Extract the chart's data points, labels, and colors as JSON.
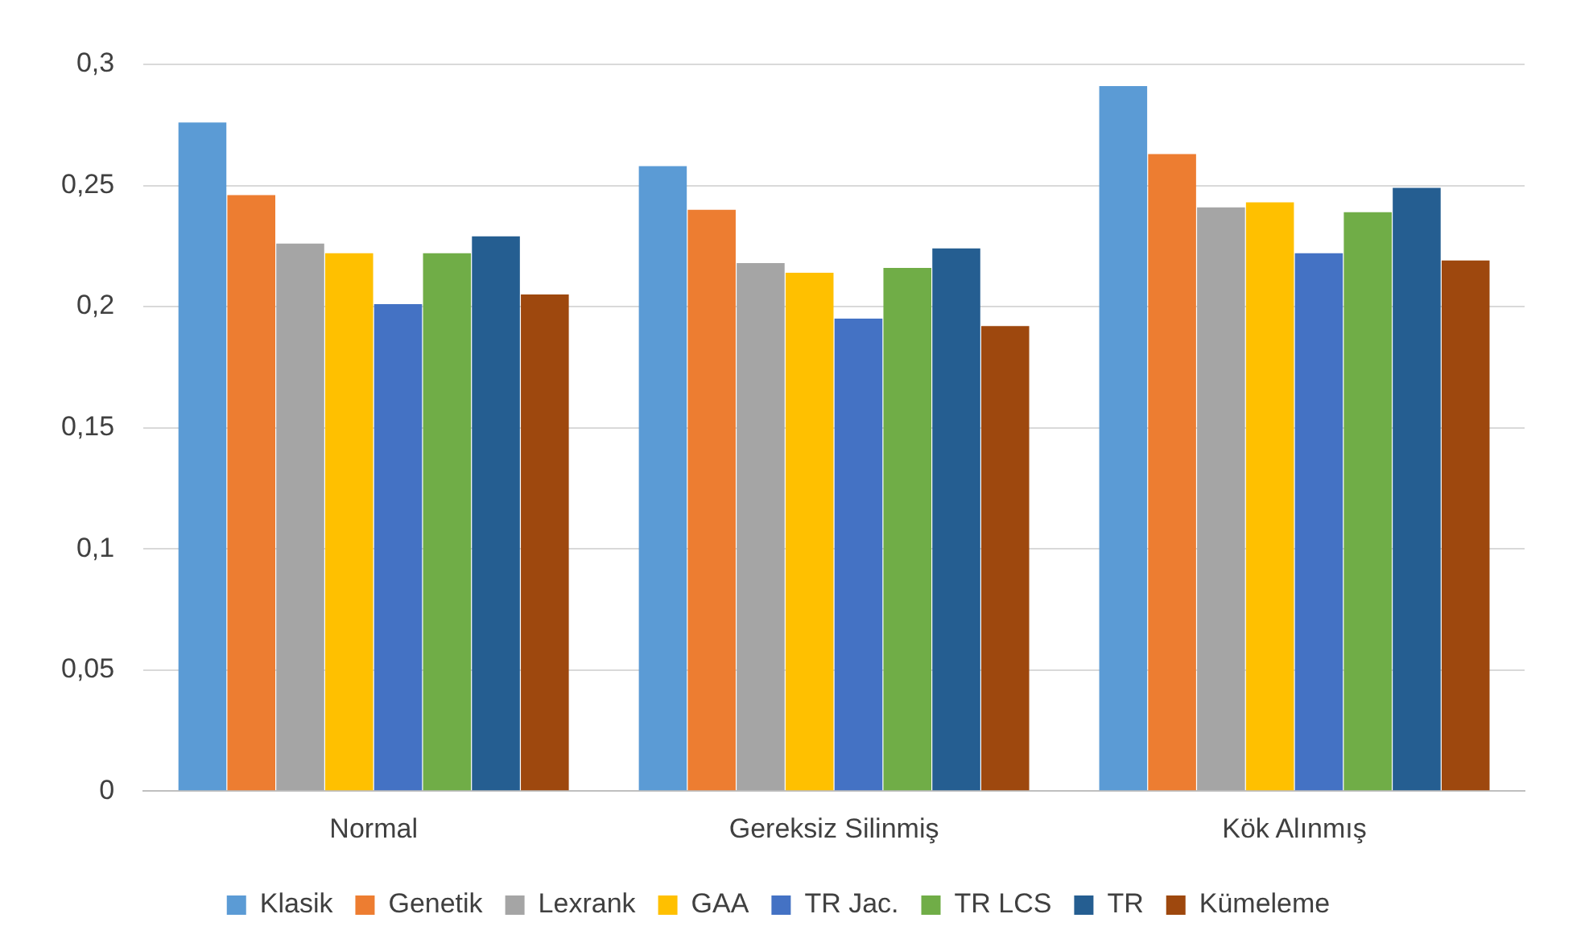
{
  "chart_data": {
    "type": "bar",
    "categories": [
      "Normal",
      "Gereksiz Silinmiş",
      "Kök Alınmış"
    ],
    "series": [
      {
        "name": "Klasik",
        "color": "#5b9bd5",
        "values": [
          0.276,
          0.258,
          0.291
        ]
      },
      {
        "name": "Genetik",
        "color": "#ed7d31",
        "values": [
          0.246,
          0.24,
          0.263
        ]
      },
      {
        "name": "Lexrank",
        "color": "#a5a5a5",
        "values": [
          0.226,
          0.218,
          0.241
        ]
      },
      {
        "name": "GAA",
        "color": "#ffc000",
        "values": [
          0.222,
          0.214,
          0.243
        ]
      },
      {
        "name": "TR Jac.",
        "color": "#4472c4",
        "values": [
          0.201,
          0.195,
          0.222
        ]
      },
      {
        "name": "TR LCS",
        "color": "#70ad47",
        "values": [
          0.222,
          0.216,
          0.239
        ]
      },
      {
        "name": "TR",
        "color": "#255e91",
        "values": [
          0.229,
          0.224,
          0.249
        ]
      },
      {
        "name": "Kümeleme",
        "color": "#9e480e",
        "values": [
          0.205,
          0.192,
          0.219
        ]
      }
    ],
    "ylim": [
      0,
      0.3
    ],
    "yticks": [
      {
        "value": 0,
        "label": "0"
      },
      {
        "value": 0.05,
        "label": "0,05"
      },
      {
        "value": 0.1,
        "label": "0,1"
      },
      {
        "value": 0.15,
        "label": "0,15"
      },
      {
        "value": 0.2,
        "label": "0,2"
      },
      {
        "value": 0.25,
        "label": "0,25"
      },
      {
        "value": 0.3,
        "label": "0,3"
      }
    ],
    "grid": "y",
    "legend": "bottom"
  }
}
